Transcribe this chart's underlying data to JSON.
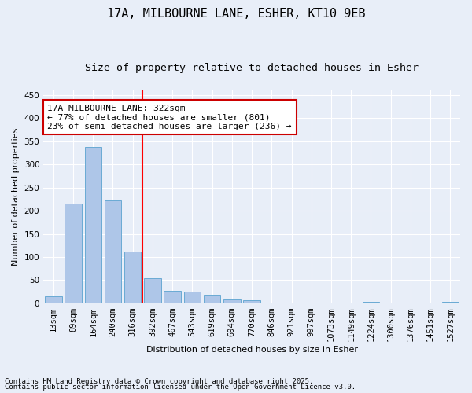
{
  "title_line1": "17A, MILBOURNE LANE, ESHER, KT10 9EB",
  "title_line2": "Size of property relative to detached houses in Esher",
  "xlabel": "Distribution of detached houses by size in Esher",
  "ylabel": "Number of detached properties",
  "categories": [
    "13sqm",
    "89sqm",
    "164sqm",
    "240sqm",
    "316sqm",
    "392sqm",
    "467sqm",
    "543sqm",
    "619sqm",
    "694sqm",
    "770sqm",
    "846sqm",
    "921sqm",
    "997sqm",
    "1073sqm",
    "1149sqm",
    "1224sqm",
    "1300sqm",
    "1376sqm",
    "1451sqm",
    "1527sqm"
  ],
  "values": [
    15,
    215,
    338,
    222,
    112,
    54,
    27,
    26,
    19,
    8,
    6,
    1,
    1,
    0,
    0,
    0,
    3,
    0,
    0,
    0,
    3
  ],
  "bar_color": "#aec6e8",
  "bar_edge_color": "#6aaad4",
  "red_line_x": 4.5,
  "annotation_text": "17A MILBOURNE LANE: 322sqm\n← 77% of detached houses are smaller (801)\n23% of semi-detached houses are larger (236) →",
  "annotation_box_color": "#ffffff",
  "annotation_box_edge": "#cc0000",
  "ylim": [
    0,
    460
  ],
  "yticks": [
    0,
    50,
    100,
    150,
    200,
    250,
    300,
    350,
    400,
    450
  ],
  "footnote1": "Contains HM Land Registry data © Crown copyright and database right 2025.",
  "footnote2": "Contains public sector information licensed under the Open Government Licence v3.0.",
  "background_color": "#e8eef8",
  "grid_color": "#ffffff",
  "title_fontsize": 11,
  "subtitle_fontsize": 9.5,
  "axis_label_fontsize": 8,
  "tick_fontsize": 7.5,
  "annotation_fontsize": 8
}
